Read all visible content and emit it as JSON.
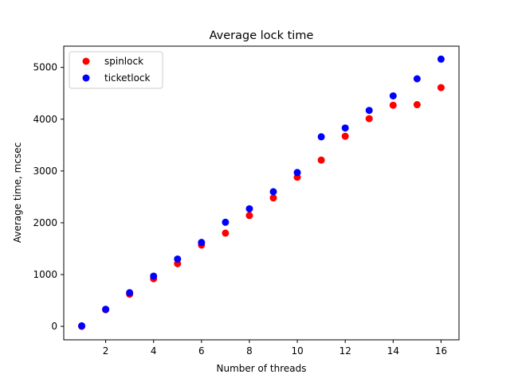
{
  "chart_data": {
    "type": "scatter",
    "title": "Average lock time",
    "xlabel": "Number of threads",
    "ylabel": "Average time, mcsec",
    "xlim": [
      0.25,
      16.75
    ],
    "ylim": [
      -260,
      5410
    ],
    "xticks": [
      2,
      4,
      6,
      8,
      10,
      12,
      14,
      16
    ],
    "yticks": [
      0,
      1000,
      2000,
      3000,
      4000,
      5000
    ],
    "grid": false,
    "legend_position": "top-left",
    "x": [
      1,
      2,
      3,
      4,
      5,
      6,
      7,
      8,
      9,
      10,
      11,
      12,
      13,
      14,
      15,
      16
    ],
    "series": [
      {
        "name": "spinlock",
        "color": "#ff0000",
        "values": [
          0,
          320,
          620,
          920,
          1210,
          1570,
          1800,
          2140,
          2480,
          2880,
          3210,
          3670,
          4010,
          4270,
          4280,
          4610
        ]
      },
      {
        "name": "ticketlock",
        "color": "#0000ff",
        "values": [
          10,
          330,
          650,
          970,
          1300,
          1620,
          2010,
          2270,
          2600,
          2970,
          3660,
          3830,
          4170,
          4450,
          4780,
          5160
        ]
      }
    ]
  }
}
